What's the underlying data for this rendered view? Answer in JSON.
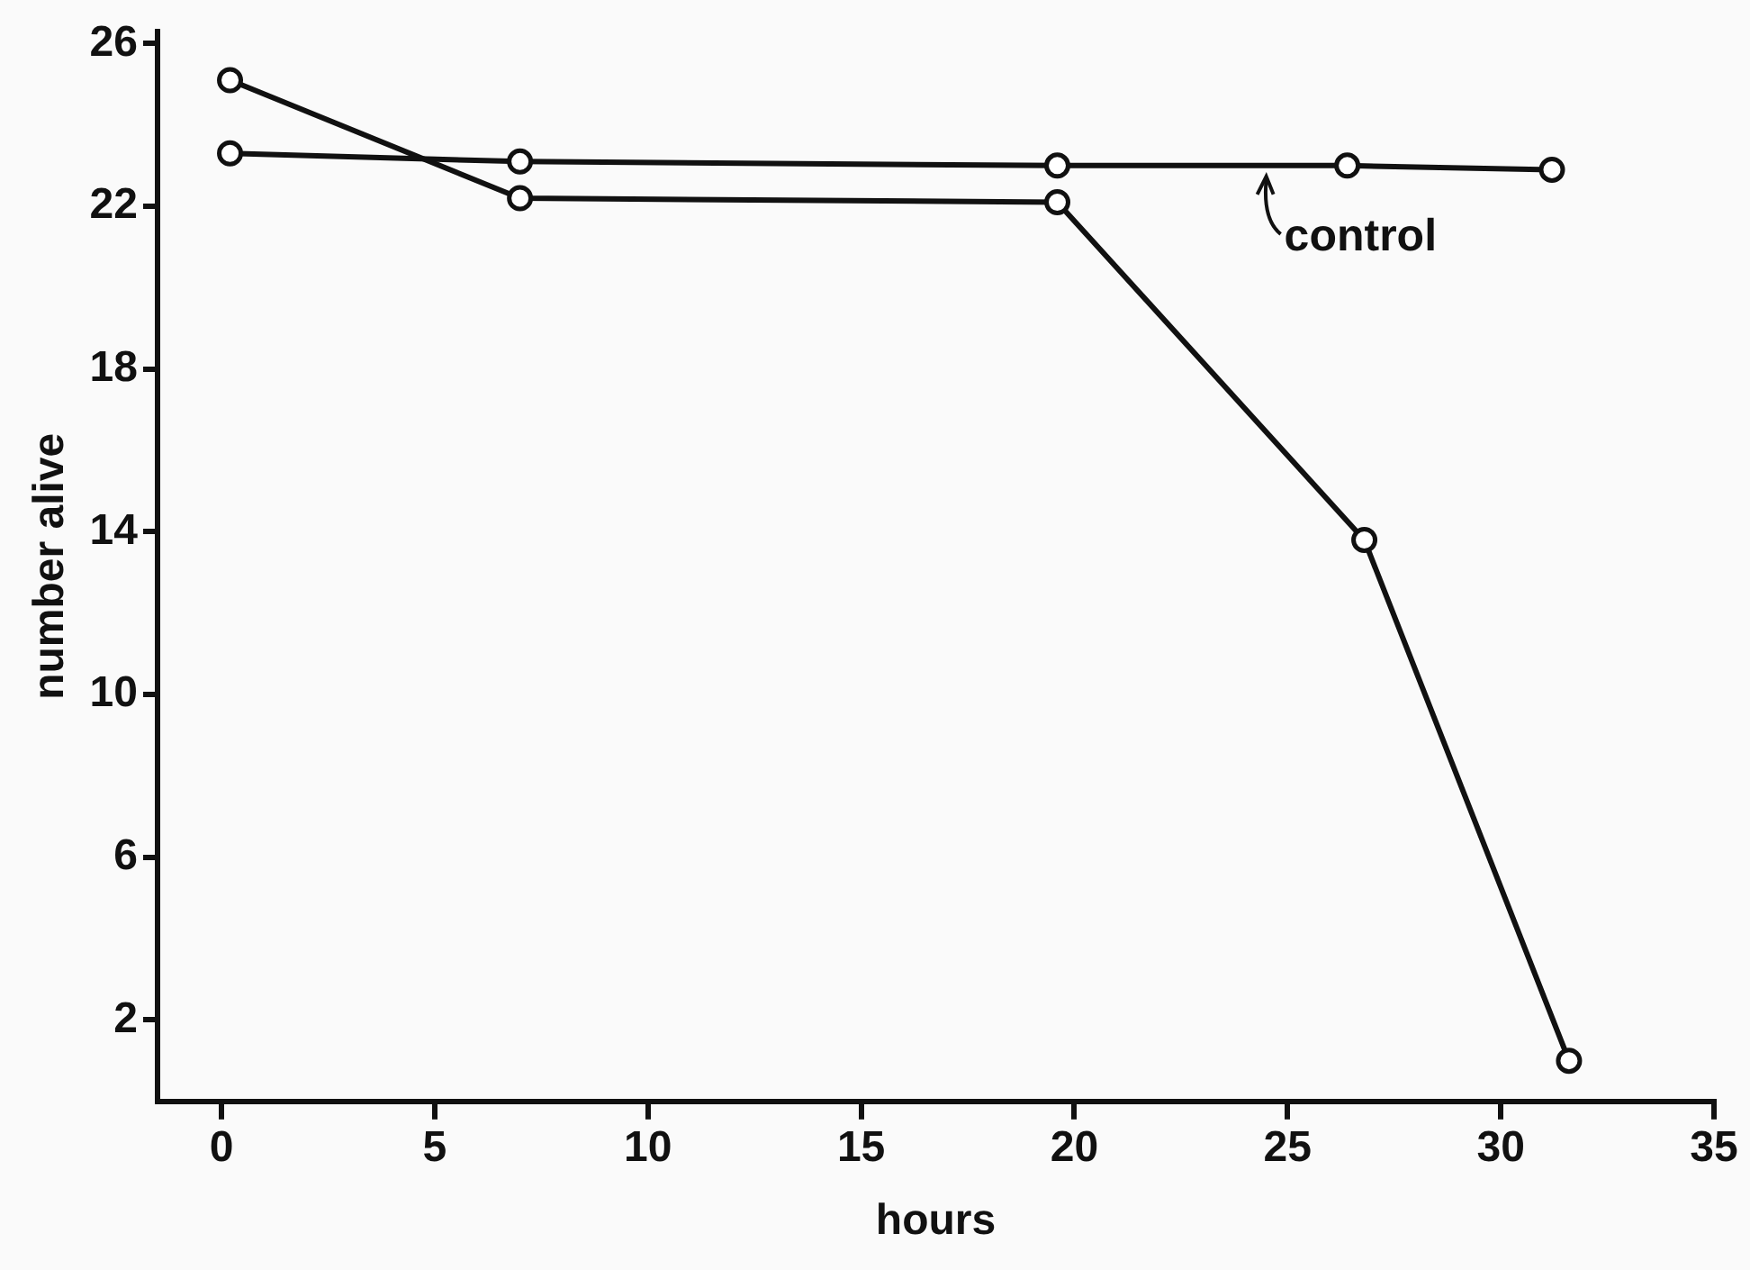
{
  "chart_data": {
    "type": "line",
    "xlabel": "hours",
    "ylabel": "number alive",
    "series": [
      {
        "x": [
          0.2,
          7,
          19.6,
          26.4,
          31.2
        ],
        "values": [
          23.3,
          23.1,
          23.0,
          23.0,
          22.9
        ],
        "color": "#111111"
      },
      {
        "x": [
          0.2,
          7,
          19.6,
          26.8,
          31.6
        ],
        "values": [
          25.1,
          22.2,
          22.1,
          13.8,
          1.0
        ],
        "color": "#111111"
      }
    ],
    "xlim": [
      -1.5,
      35
    ],
    "xticks": [
      0,
      5,
      10,
      15,
      20,
      25,
      30,
      35
    ],
    "ylim": [
      0,
      26.3
    ],
    "yticks": [
      2,
      6,
      10,
      14,
      18,
      22,
      26
    ],
    "grid": false,
    "legend": false,
    "marker": "circle",
    "line_style": "solid",
    "annotations": [
      {
        "text": "control",
        "x": 24.5,
        "y": 23.0
      }
    ]
  }
}
